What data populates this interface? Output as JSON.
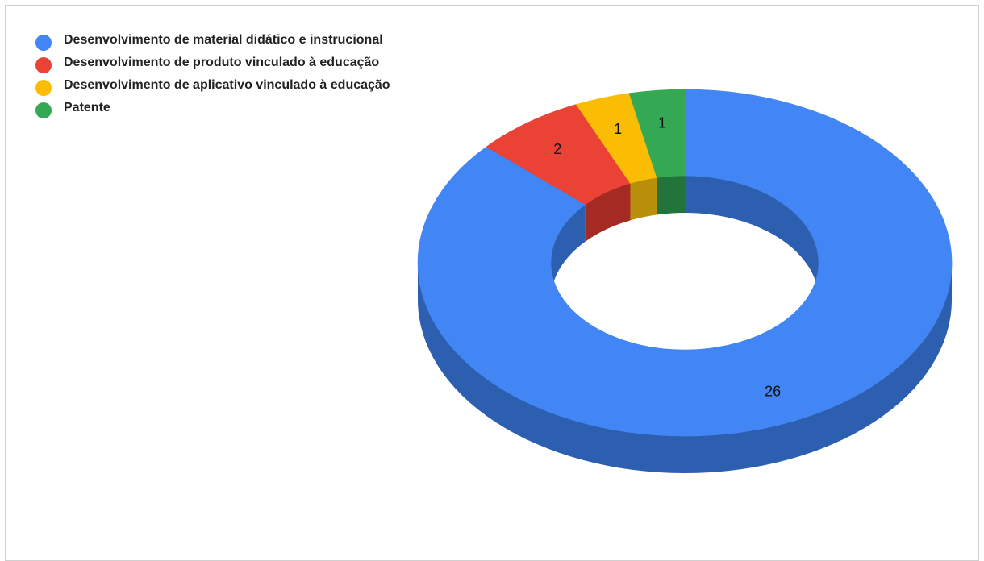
{
  "chart_data": {
    "type": "pie",
    "categories": [
      "Desenvolvimento de material didático e instrucional",
      "Desenvolvimento de produto vinculado à educação",
      "Desenvolvimento de aplicativo vinculado à educação",
      "Patente"
    ],
    "values": [
      26,
      2,
      1,
      1
    ],
    "colors": [
      "#4285f4",
      "#ea4335",
      "#fbbc04",
      "#34a853"
    ],
    "side_colors": [
      "#2d5fb0",
      "#a52a23",
      "#b8900c",
      "#23743a"
    ],
    "variant": "3d-donut",
    "legend_position": "left",
    "data_labels": [
      "26",
      "2",
      "1",
      "1"
    ]
  }
}
